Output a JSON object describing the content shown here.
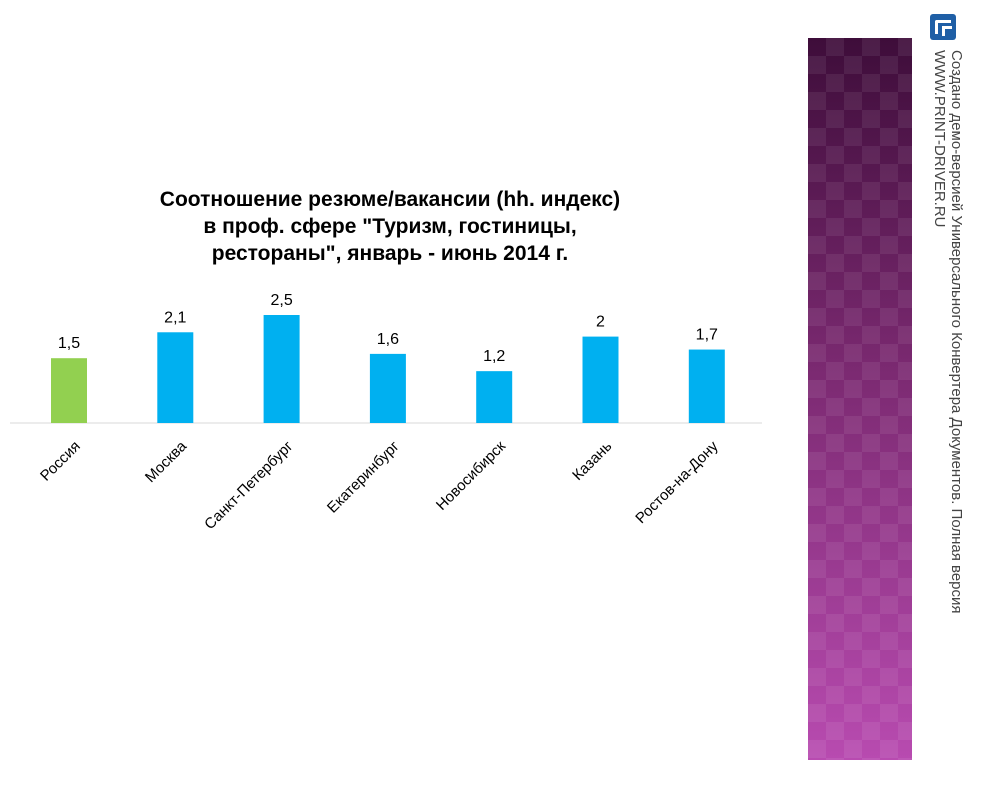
{
  "chart_data": {
    "type": "bar",
    "title_lines": [
      "Соотношение резюме/вакансии (hh. индекс)",
      "в проф. сфере \"Туризм, гостиницы,",
      "рестораны\", январь - июнь 2014 г."
    ],
    "categories": [
      "Россия",
      "Москва",
      "Санкт-Петербург",
      "Екатеринбург",
      "Новосибирск",
      "Казань",
      "Ростов-на-Дону"
    ],
    "values": [
      1.5,
      2.1,
      2.5,
      1.6,
      1.2,
      2,
      1.7
    ],
    "value_labels": [
      "1,5",
      "2,1",
      "2,5",
      "1,6",
      "1,2",
      "2",
      "1,7"
    ],
    "bar_colors": [
      "#92d050",
      "#00b0f0",
      "#00b0f0",
      "#00b0f0",
      "#00b0f0",
      "#00b0f0",
      "#00b0f0"
    ],
    "ylim": [
      0,
      2.5
    ],
    "grid": false,
    "legend": "none"
  },
  "watermark": {
    "line1": "Создано демо-версией Универсального Конвертера Документов. Полная версия",
    "line2": "WWW.PRINT-DRIVER.RU",
    "logo_icon": "print-driver-logo-icon"
  },
  "colors": {
    "axis": "#d9d9d9",
    "panel_top": "#3e0d3a",
    "panel_bottom": "#b84bb0"
  }
}
